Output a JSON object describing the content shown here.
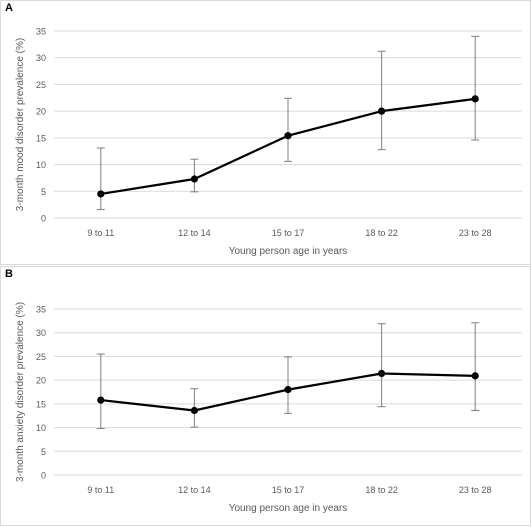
{
  "panels": [
    {
      "letter": "A"
    },
    {
      "letter": "B"
    }
  ],
  "chart_data": [
    {
      "type": "line",
      "categories": [
        "9 to 11",
        "12 to  14",
        "15 to 17",
        "18 to 22",
        "23 to 28"
      ],
      "series": [
        {
          "values": [
            4.5,
            7.3,
            15.4,
            20.0,
            22.3
          ],
          "error_low": [
            1.6,
            4.9,
            10.6,
            12.8,
            14.6
          ],
          "error_high": [
            13.1,
            11.0,
            22.4,
            31.2,
            34.0
          ]
        }
      ],
      "xlabel": "Young person age in years",
      "ylabel": "3-month mood disorder prevalence (%)",
      "ylim": [
        0,
        35
      ],
      "yticks": [
        "0",
        "5",
        "10",
        "15",
        "20",
        "25",
        "30",
        "35"
      ],
      "grid": true,
      "line_color": "#000000",
      "grid_color": "#d9d9d9",
      "error_bar_color": "#7f7f7f"
    },
    {
      "type": "line",
      "categories": [
        "9 to 11",
        "12 to  14",
        "15 to 17",
        "18 to 22",
        "23 to 28"
      ],
      "series": [
        {
          "values": [
            15.8,
            13.6,
            18.0,
            21.4,
            20.9
          ],
          "error_low": [
            9.8,
            10.1,
            13.0,
            14.4,
            13.6
          ],
          "error_high": [
            25.5,
            18.2,
            24.9,
            31.9,
            32.1
          ]
        }
      ],
      "xlabel": "Young person age in years",
      "ylabel": "3-month anxiety disorder prevalence (%)",
      "ylim": [
        0,
        35
      ],
      "yticks": [
        "0",
        "5",
        "10",
        "15",
        "20",
        "25",
        "30",
        "35"
      ],
      "grid": true,
      "line_color": "#000000",
      "grid_color": "#d9d9d9",
      "error_bar_color": "#7f7f7f"
    }
  ]
}
